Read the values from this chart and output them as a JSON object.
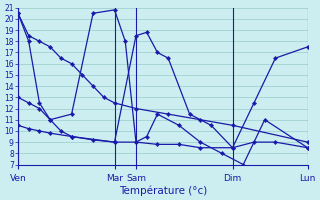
{
  "xlabel": "Température (°c)",
  "ylim": [
    7,
    21
  ],
  "yticks": [
    7,
    8,
    9,
    10,
    11,
    12,
    13,
    14,
    15,
    16,
    17,
    18,
    19,
    20,
    21
  ],
  "x_day_labels": [
    "Ven",
    "Mar",
    "Sam",
    "Dim",
    "Lun"
  ],
  "x_day_positions": [
    0,
    9,
    11,
    20,
    27
  ],
  "xlim": [
    0,
    27
  ],
  "background_color": "#cceef0",
  "grid_color": "#99cccc",
  "line_color": "#1a1aaa",
  "lines_x": [
    [
      0,
      1,
      2,
      3,
      4,
      5,
      6,
      7,
      8,
      9,
      11,
      14,
      17,
      20,
      27
    ],
    [
      0,
      1,
      2,
      3,
      4,
      5,
      9,
      11,
      12,
      13,
      14,
      16,
      18,
      20,
      22,
      24,
      27
    ],
    [
      0,
      1,
      2,
      3,
      5,
      7,
      9,
      10,
      11,
      12,
      13,
      15,
      17,
      19,
      21,
      23,
      27
    ],
    [
      0,
      1,
      2,
      3,
      5,
      7,
      9,
      11,
      13,
      15,
      17,
      20,
      22,
      24,
      27
    ]
  ],
  "lines_y": [
    [
      20.5,
      18.5,
      18.0,
      17.5,
      16.5,
      16.0,
      15.0,
      14.0,
      13.0,
      12.5,
      12.0,
      11.5,
      11.0,
      10.5,
      9.0
    ],
    [
      20.5,
      18.0,
      12.5,
      11.0,
      10.0,
      9.5,
      9.0,
      18.5,
      18.8,
      17.0,
      16.5,
      11.5,
      10.5,
      8.5,
      12.5,
      16.5,
      17.5
    ],
    [
      13.0,
      12.5,
      12.0,
      11.0,
      11.5,
      20.5,
      20.8,
      18.0,
      9.0,
      9.5,
      11.5,
      10.5,
      9.0,
      8.0,
      7.0,
      11.0,
      8.5
    ],
    [
      10.5,
      10.2,
      10.0,
      9.8,
      9.5,
      9.2,
      9.0,
      9.0,
      8.8,
      8.8,
      8.5,
      8.5,
      9.0,
      9.0,
      8.5
    ]
  ]
}
